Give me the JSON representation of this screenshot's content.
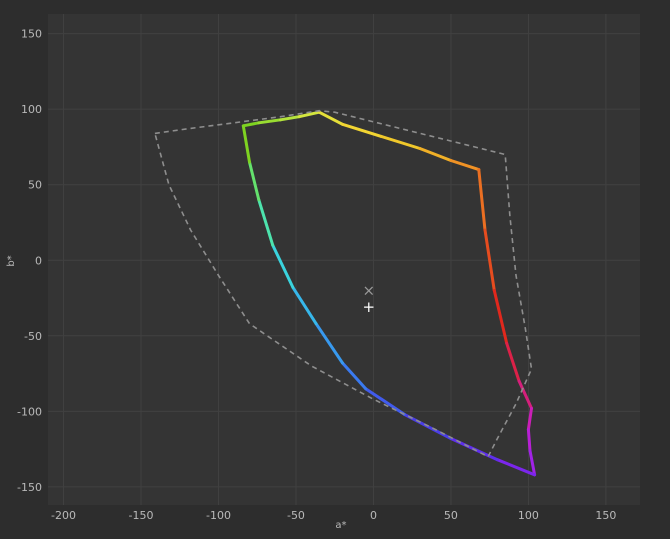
{
  "chart_data": {
    "type": "line",
    "xlabel": "a*",
    "ylabel": "b*",
    "xlim": [
      -210,
      172
    ],
    "ylim": [
      -162,
      163
    ],
    "x_ticks": [
      -200,
      -150,
      -100,
      -50,
      0,
      50,
      100,
      150
    ],
    "y_ticks": [
      150,
      100,
      50,
      0,
      -50,
      -100,
      -150
    ],
    "grid": true,
    "series": [
      {
        "style": "gradient-solid",
        "points": [
          [
            -84,
            89
          ],
          [
            -74,
            91
          ],
          [
            -60,
            93
          ],
          [
            -48,
            95
          ],
          [
            -35,
            98
          ],
          [
            -20,
            90
          ],
          [
            5,
            82
          ],
          [
            30,
            74
          ],
          [
            50,
            66
          ],
          [
            68,
            60
          ],
          [
            72,
            20
          ],
          [
            78,
            -20
          ],
          [
            86,
            -55
          ],
          [
            94,
            -80
          ],
          [
            102,
            -98
          ],
          [
            100,
            -112
          ],
          [
            101,
            -126
          ],
          [
            104,
            -142
          ],
          [
            80,
            -132
          ],
          [
            50,
            -118
          ],
          [
            20,
            -102
          ],
          [
            -5,
            -85
          ],
          [
            -20,
            -68
          ],
          [
            -37,
            -42
          ],
          [
            -52,
            -18
          ],
          [
            -65,
            10
          ],
          [
            -74,
            40
          ],
          [
            -80,
            65
          ],
          [
            -84,
            89
          ]
        ],
        "colors": [
          "#7ed321",
          "#a8e23a",
          "#d8e640",
          "#f2d833",
          "#f0c429",
          "#f09425",
          "#e95d20",
          "#e0241d",
          "#d81f6a",
          "#c81fc8",
          "#a522e6",
          "#6a27ef",
          "#4a3fe6",
          "#3b6ff0",
          "#37a0ee",
          "#37d0e6",
          "#55ea99",
          "#7ed321"
        ]
      },
      {
        "style": "dashed",
        "color": "#8e8e8e",
        "points": [
          [
            -141,
            84
          ],
          [
            -120,
            87
          ],
          [
            -90,
            91
          ],
          [
            -60,
            95
          ],
          [
            -35,
            99
          ],
          [
            -25,
            98
          ],
          [
            85,
            70
          ],
          [
            88,
            30
          ],
          [
            92,
            -10
          ],
          [
            98,
            -45
          ],
          [
            102,
            -72
          ],
          [
            92,
            -95
          ],
          [
            80,
            -118
          ],
          [
            74,
            -130
          ],
          [
            40,
            -112
          ],
          [
            0,
            -92
          ],
          [
            -40,
            -70
          ],
          [
            -80,
            -42
          ],
          [
            -100,
            -10
          ],
          [
            -118,
            20
          ],
          [
            -132,
            50
          ],
          [
            -141,
            84
          ]
        ]
      }
    ],
    "markers": [
      {
        "symbol": "×",
        "x": -3,
        "y": -20,
        "color": "#9a9a9a"
      },
      {
        "symbol": "+",
        "x": -3,
        "y": -31,
        "color": "#ffffff"
      }
    ]
  }
}
